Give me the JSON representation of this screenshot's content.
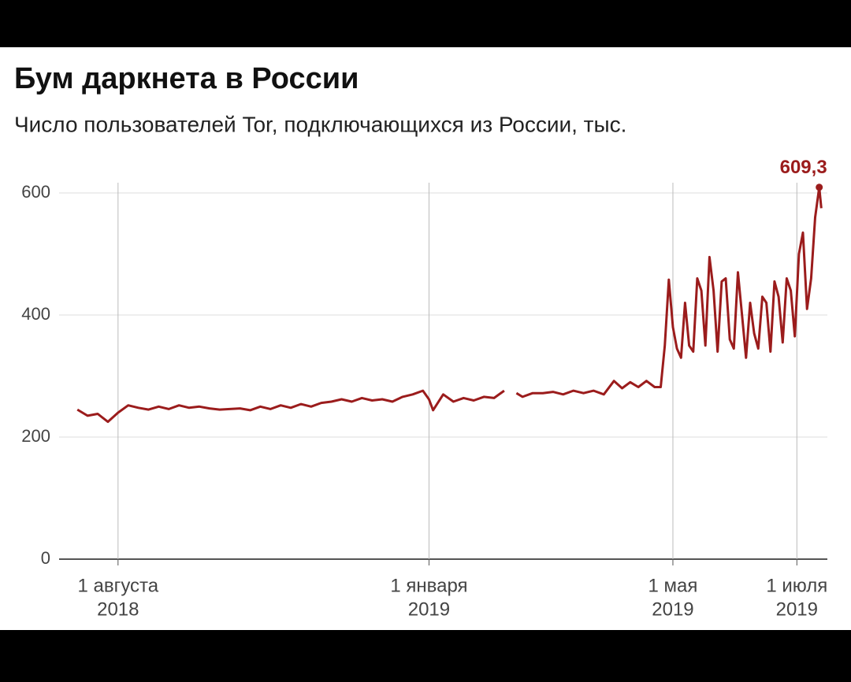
{
  "chart_data": {
    "type": "line",
    "title": "Бум даркнета в России",
    "subtitle": "Число пользователей Tor, подключающихся из России, тыс.",
    "x": [
      "2018-07-12",
      "2018-07-17",
      "2018-07-22",
      "2018-07-27",
      "2018-08-01",
      "2018-08-06",
      "2018-08-11",
      "2018-08-16",
      "2018-08-21",
      "2018-08-26",
      "2018-08-31",
      "2018-09-05",
      "2018-09-10",
      "2018-09-15",
      "2018-09-20",
      "2018-09-25",
      "2018-09-30",
      "2018-10-05",
      "2018-10-10",
      "2018-10-15",
      "2018-10-20",
      "2018-10-25",
      "2018-10-30",
      "2018-11-04",
      "2018-11-09",
      "2018-11-14",
      "2018-11-19",
      "2018-11-24",
      "2018-11-29",
      "2018-12-04",
      "2018-12-09",
      "2018-12-14",
      "2018-12-19",
      "2018-12-24",
      "2018-12-29",
      "2019-01-01",
      "2019-01-03",
      "2019-01-08",
      "2019-01-13",
      "2019-01-18",
      "2019-01-23",
      "2019-01-28",
      "2019-02-02",
      "2019-02-07",
      "2019-02-09",
      "2019-02-13",
      "2019-02-16",
      "2019-02-21",
      "2019-02-26",
      "2019-03-03",
      "2019-03-08",
      "2019-03-13",
      "2019-03-18",
      "2019-03-23",
      "2019-03-28",
      "2019-04-02",
      "2019-04-06",
      "2019-04-10",
      "2019-04-14",
      "2019-04-18",
      "2019-04-22",
      "2019-04-25",
      "2019-04-27",
      "2019-04-29",
      "2019-05-01",
      "2019-05-03",
      "2019-05-05",
      "2019-05-07",
      "2019-05-09",
      "2019-05-11",
      "2019-05-13",
      "2019-05-15",
      "2019-05-17",
      "2019-05-19",
      "2019-05-21",
      "2019-05-23",
      "2019-05-25",
      "2019-05-27",
      "2019-05-29",
      "2019-05-31",
      "2019-06-02",
      "2019-06-04",
      "2019-06-06",
      "2019-06-08",
      "2019-06-10",
      "2019-06-12",
      "2019-06-14",
      "2019-06-16",
      "2019-06-18",
      "2019-06-20",
      "2019-06-22",
      "2019-06-24",
      "2019-06-26",
      "2019-06-28",
      "2019-06-30",
      "2019-07-02",
      "2019-07-04",
      "2019-07-06",
      "2019-07-08",
      "2019-07-10",
      "2019-07-12",
      "2019-07-13"
    ],
    "series": [
      {
        "name": "Пользователи Tor",
        "color": "#9b1c1c",
        "values": [
          245,
          235,
          238,
          225,
          240,
          252,
          248,
          245,
          250,
          246,
          252,
          248,
          250,
          247,
          245,
          246,
          247,
          244,
          250,
          246,
          252,
          248,
          254,
          250,
          256,
          258,
          262,
          258,
          264,
          260,
          262,
          258,
          266,
          270,
          276,
          262,
          244,
          270,
          258,
          264,
          260,
          266,
          264,
          276,
          null,
          272,
          266,
          272,
          272,
          274,
          270,
          276,
          272,
          276,
          270,
          292,
          280,
          290,
          282,
          292,
          282,
          282,
          350,
          458,
          380,
          345,
          330,
          420,
          350,
          340,
          460,
          440,
          350,
          495,
          440,
          340,
          455,
          460,
          360,
          345,
          470,
          400,
          330,
          420,
          370,
          345,
          430,
          420,
          340,
          455,
          430,
          355,
          460,
          440,
          365,
          500,
          535,
          410,
          460,
          560,
          609.3,
          575
        ],
        "value_labels": [
          null,
          null,
          null,
          null,
          null,
          null,
          null,
          null,
          null,
          null,
          null,
          null,
          null,
          null,
          null,
          null,
          null,
          null,
          null,
          null,
          null,
          null,
          null,
          null,
          null,
          null,
          null,
          null,
          null,
          null,
          null,
          null,
          null,
          null,
          null,
          null,
          null,
          null,
          null,
          null,
          null,
          null,
          null,
          null,
          null,
          null,
          null,
          null,
          null,
          null,
          null,
          null,
          null,
          null,
          null,
          null,
          null,
          null,
          null,
          null,
          null,
          null,
          null,
          null,
          null,
          null,
          null,
          null,
          null,
          null,
          null,
          null,
          null,
          null,
          null,
          null,
          null,
          null,
          null,
          null,
          null,
          null,
          null,
          null,
          null,
          null,
          null,
          null,
          null,
          null,
          null,
          null,
          null,
          null,
          null,
          null,
          null,
          null,
          null,
          null,
          "609,3",
          null
        ]
      }
    ],
    "xlim": [
      "2018-07-03",
      "2019-07-16"
    ],
    "xticks": [
      {
        "value": "2018-08-01",
        "label": [
          "1 августа",
          "2018"
        ]
      },
      {
        "value": "2019-01-01",
        "label": [
          "1 января",
          "2019"
        ]
      },
      {
        "value": "2019-05-01",
        "label": [
          "1 мая",
          "2019"
        ]
      },
      {
        "value": "2019-07-01",
        "label": [
          "1 июля",
          "2019"
        ]
      }
    ],
    "ylim": [
      0,
      650
    ],
    "yticks": [
      0,
      200,
      400,
      600
    ],
    "grid": true
  }
}
